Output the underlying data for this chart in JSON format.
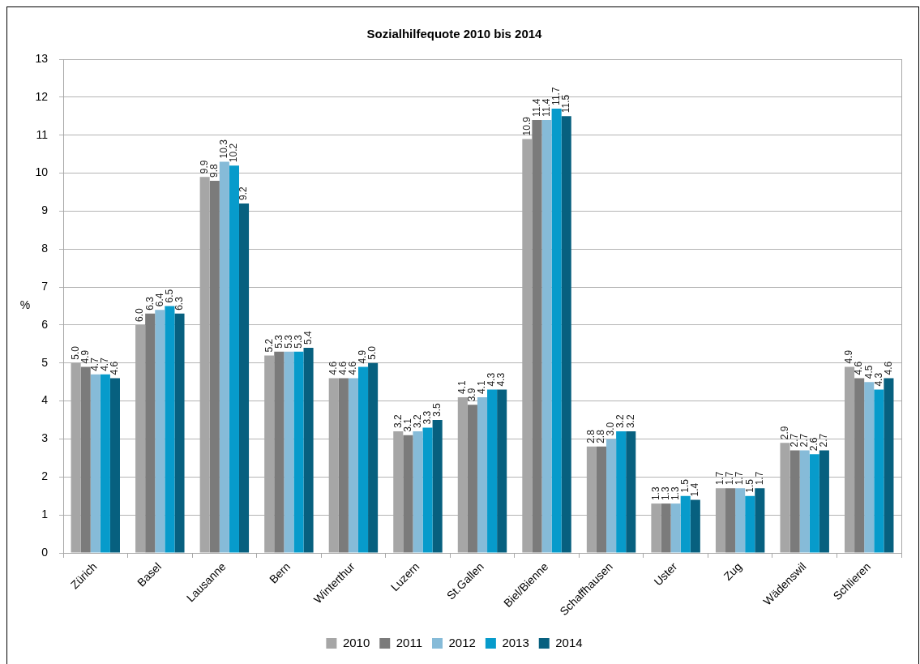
{
  "chart_data": {
    "type": "bar",
    "title": "Sozialhilfequote 2010 bis 2014",
    "ylabel": "%",
    "categories": [
      "Zürich",
      "Basel",
      "Lausanne",
      "Bern",
      "Winterthur",
      "Luzern",
      "St.Gallen",
      "Biel/Bienne",
      "Schaffhausen",
      "Uster",
      "Zug",
      "Wädenswil",
      "Schlieren"
    ],
    "series": [
      {
        "name": "2010",
        "color": "#a6a6a6",
        "values": [
          5.0,
          6.0,
          9.9,
          5.2,
          4.6,
          3.2,
          4.1,
          10.9,
          2.8,
          1.3,
          1.7,
          2.9,
          4.9
        ],
        "value_labels": [
          "5.0",
          "6.0",
          "9.9",
          "5.2",
          "4.6",
          "3.2",
          "4.1",
          "10.9",
          "2.8",
          "1.3",
          "1.7",
          "2.9",
          "4.9"
        ]
      },
      {
        "name": "2011",
        "color": "#7b7b7b",
        "values": [
          4.9,
          6.3,
          9.8,
          5.3,
          4.6,
          3.1,
          3.9,
          11.4,
          2.8,
          1.3,
          1.7,
          2.7,
          4.6
        ],
        "value_labels": [
          "4.9",
          "6.3",
          "9.8",
          "5.3",
          "4.6",
          "3.1",
          "3.9",
          "11.4",
          "2.8",
          "1.3",
          "1.7",
          "2.7",
          "4.6"
        ]
      },
      {
        "name": "2012",
        "color": "#86bbd8",
        "values": [
          4.7,
          6.4,
          10.3,
          5.3,
          4.6,
          3.2,
          4.1,
          11.4,
          3.0,
          1.3,
          1.7,
          2.7,
          4.5
        ],
        "value_labels": [
          "4.7",
          "6.4",
          "10.3",
          "5.3",
          "4.6",
          "3.2",
          "4.1",
          "11.4",
          "3.0",
          "1.3",
          "1.7",
          "2.7",
          "4.5"
        ]
      },
      {
        "name": "2013",
        "color": "#079bcb",
        "values": [
          4.7,
          6.5,
          10.2,
          5.3,
          4.9,
          3.3,
          4.3,
          11.7,
          3.2,
          1.5,
          1.5,
          2.6,
          4.3
        ],
        "value_labels": [
          "4.7",
          "6.5",
          "10.2",
          "5.3",
          "4.9",
          "3.3",
          "4.3",
          "11.7",
          "3.2",
          "1.5",
          "1.5",
          "2.6",
          "4.3"
        ]
      },
      {
        "name": "2014",
        "color": "#07607f",
        "values": [
          4.6,
          6.3,
          9.2,
          5.4,
          5.0,
          3.5,
          4.3,
          11.5,
          3.2,
          1.4,
          1.7,
          2.7,
          4.6
        ],
        "value_labels": [
          "4.6",
          "6.3",
          "9.2",
          "5.4",
          "5.0",
          "3.5",
          "4.3",
          "11.5",
          "3.2",
          "1.4",
          "1.7",
          "2.7",
          "4.6"
        ]
      }
    ],
    "ylim": [
      0,
      13
    ],
    "yticks": [
      0,
      1,
      2,
      3,
      4,
      5,
      6,
      7,
      8,
      9,
      10,
      11,
      12,
      13
    ],
    "grid": "y",
    "legend": "bottom"
  }
}
